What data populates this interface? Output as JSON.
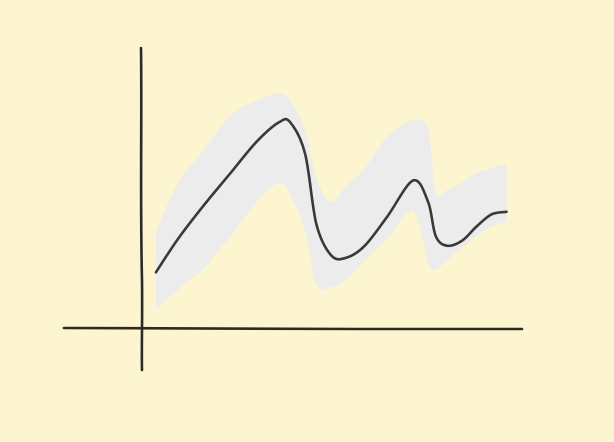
{
  "chart_data": {
    "type": "line",
    "title": "",
    "xlabel": "",
    "ylabel": "",
    "xlim": [
      0,
      100
    ],
    "ylim": [
      0,
      100
    ],
    "grid": false,
    "legend": "none",
    "colors": {
      "background": "#fdf5d0",
      "axis": "#2b2a27",
      "line": "#3a3936",
      "band": "#ececec"
    },
    "series": [
      {
        "x": [
          4,
          10,
          17,
          24,
          31,
          37,
          40,
          44,
          47,
          51,
          55,
          60,
          66,
          73,
          77,
          79,
          82,
          86,
          90,
          94,
          98
        ],
        "y": [
          23,
          37,
          51,
          64,
          77,
          85,
          85,
          72,
          43,
          30,
          29,
          34,
          46,
          61,
          52,
          38,
          34,
          36,
          42,
          47,
          48
        ],
        "lower": [
          8,
          16,
          25,
          38,
          52,
          60,
          55,
          40,
          18,
          17,
          20,
          28,
          37,
          48,
          27,
          24,
          28,
          33,
          38,
          42,
          44
        ],
        "upper": [
          40,
          60,
          74,
          88,
          94,
          97,
          94,
          82,
          62,
          52,
          59,
          66,
          79,
          86,
          82,
          56,
          57,
          60,
          64,
          66,
          68
        ]
      }
    ]
  }
}
